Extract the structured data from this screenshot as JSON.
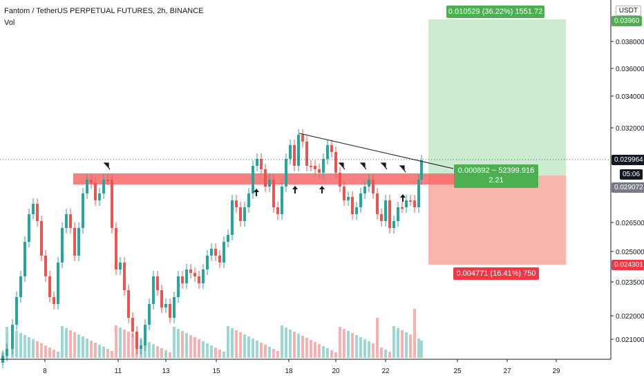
{
  "header": {
    "title": "Fantom / TetherUS PERPETUAL FUTURES, 2h, BINANCE",
    "volume_label": "Vol"
  },
  "currency_button": "USDT",
  "colors": {
    "up": "#26a69a",
    "down": "#ef5350",
    "profit_zone": "#cdebd1",
    "loss_zone": "#f9b4ae",
    "resistance_band": "#f56a6a",
    "profit_label": "#4caf50",
    "loss_label": "#f23645",
    "price_tag": "#131722"
  },
  "chart_data": {
    "type": "candlestick",
    "x_ticks": [
      "8",
      "11",
      "13",
      "15",
      "18",
      "20",
      "22",
      "25",
      "27",
      "29"
    ],
    "y_ticks": [
      "0.038000",
      "0.036000",
      "0.034000",
      "0.032000",
      "0.026500",
      "0.025000",
      "0.023500",
      "0.022000",
      "0.021000"
    ],
    "price_labels": {
      "current": "0.029964",
      "countdown": "05:06",
      "entry": "0.029072",
      "stop": "0.024301",
      "target": "0.03960"
    },
    "position": {
      "target_label": "0.010529 (36.22%) 1551.72",
      "stop_label": "0.004771 (16.41%) 750",
      "center_label_line1": "0.000892 ~ 52399.916",
      "center_label_line2": "2.21"
    },
    "ylim": [
      0.0195,
      0.0405
    ],
    "annotations": {
      "up_arrows": 4,
      "pin_markers": 5
    }
  }
}
